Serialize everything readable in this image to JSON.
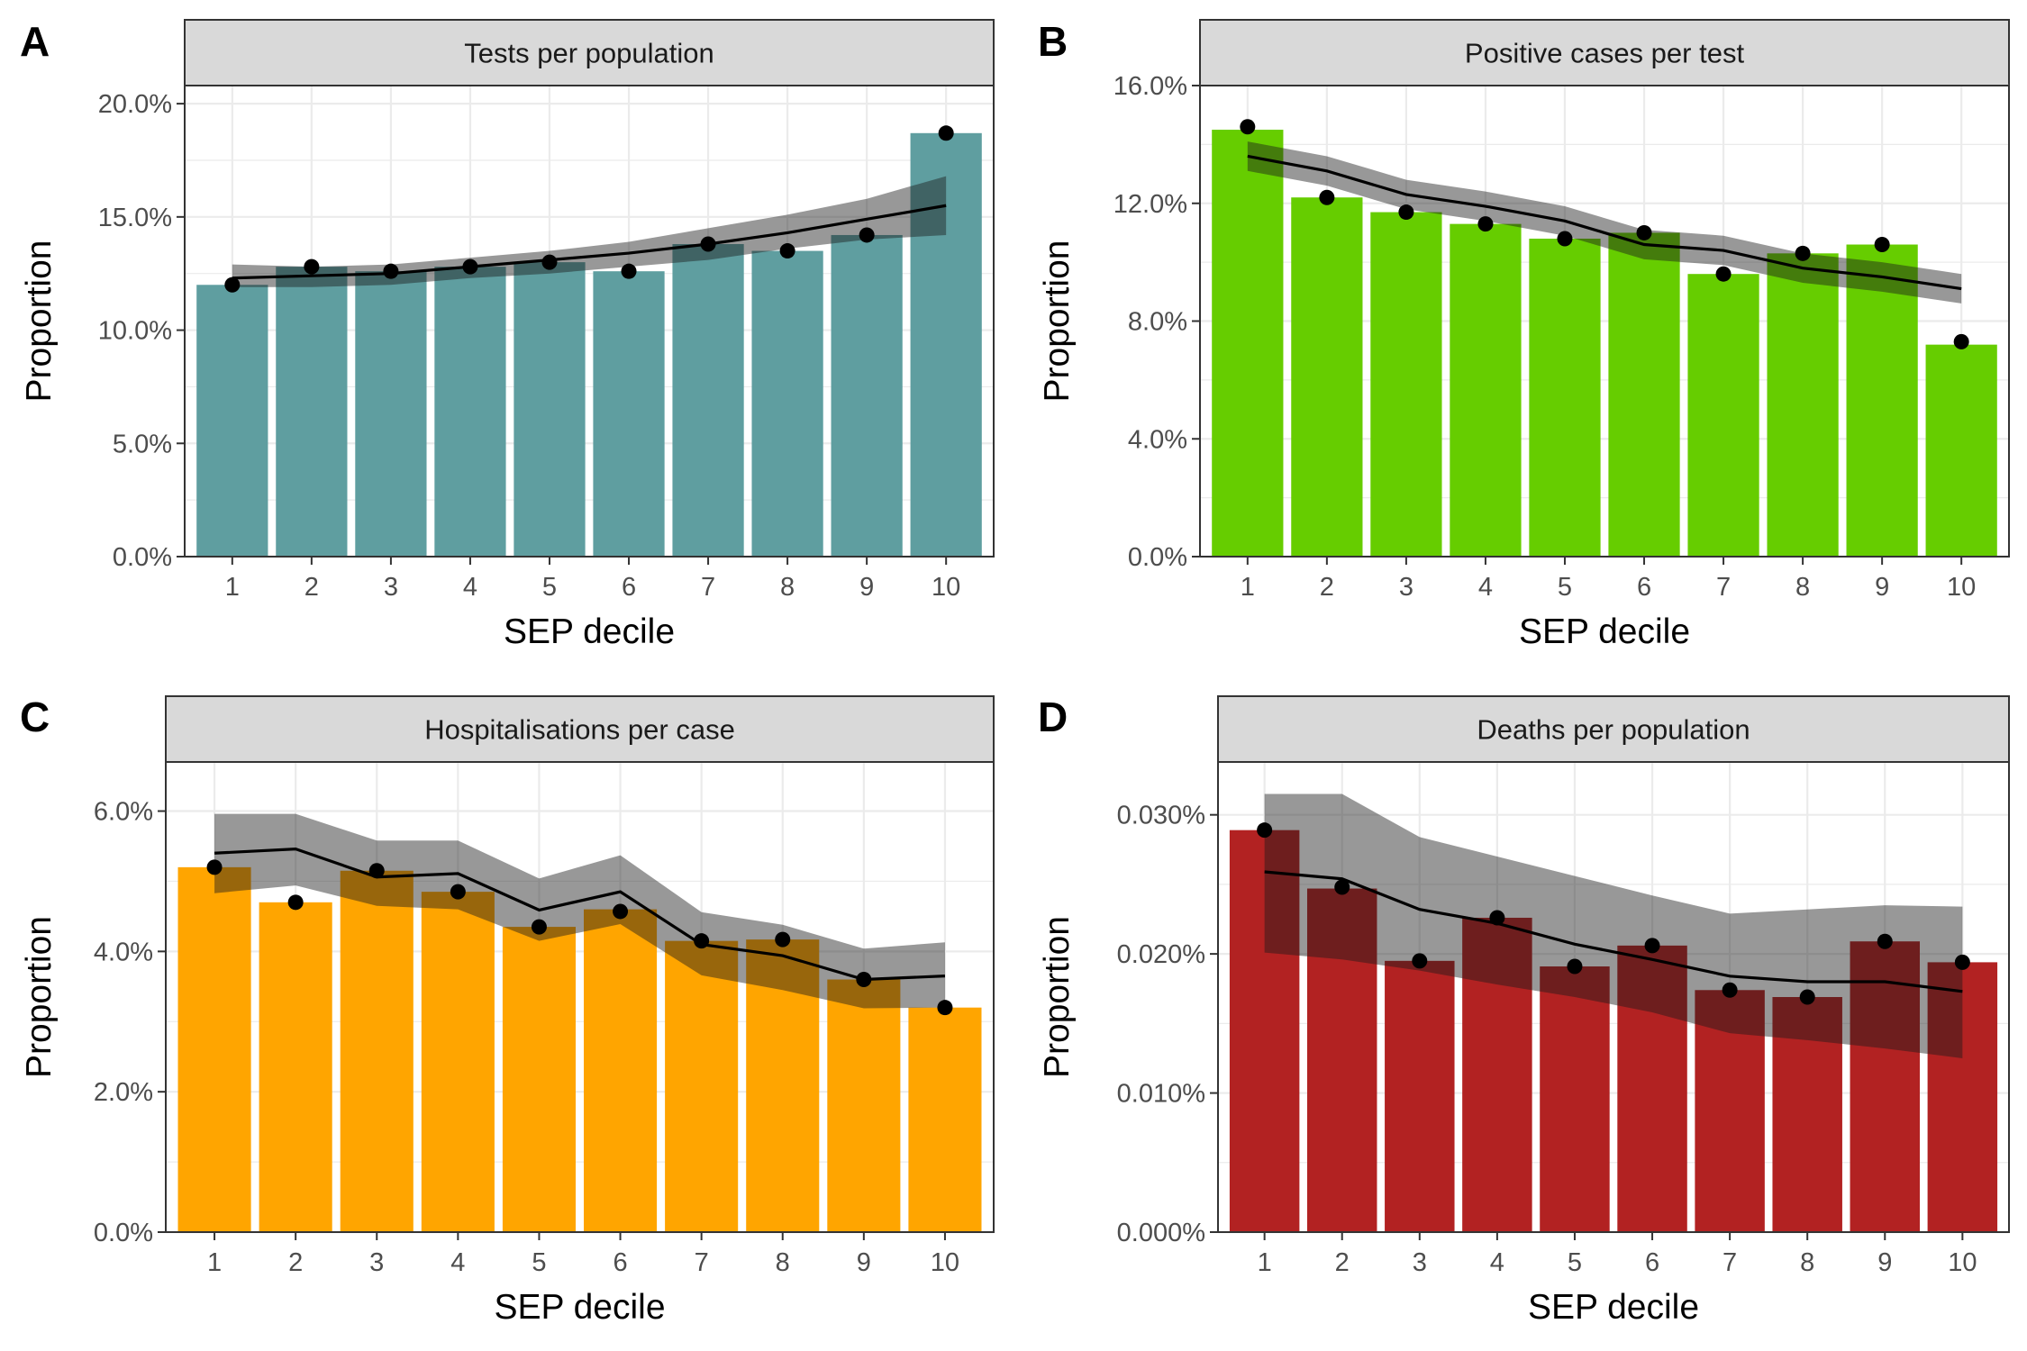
{
  "chart_data": [
    {
      "panel_label": "A",
      "type": "bar",
      "title": "Tests per population",
      "xlabel": "SEP decile",
      "ylabel": "Proportion",
      "categories": [
        "1",
        "2",
        "3",
        "4",
        "5",
        "6",
        "7",
        "8",
        "9",
        "10"
      ],
      "values": [
        12.0,
        12.8,
        12.6,
        12.8,
        13.0,
        12.6,
        13.8,
        13.5,
        14.2,
        18.7
      ],
      "points": [
        12.0,
        12.8,
        12.6,
        12.8,
        13.0,
        12.6,
        13.8,
        13.5,
        14.2,
        18.7
      ],
      "fit": [
        12.3,
        12.4,
        12.5,
        12.8,
        13.1,
        13.4,
        13.8,
        14.3,
        14.9,
        15.5
      ],
      "fit_lower": [
        11.9,
        11.9,
        12.0,
        12.3,
        12.5,
        12.8,
        13.1,
        13.6,
        14.0,
        14.2
      ],
      "fit_upper": [
        12.9,
        12.8,
        12.9,
        13.2,
        13.5,
        13.9,
        14.5,
        15.1,
        15.8,
        16.8
      ],
      "yticks": [
        0,
        5,
        10,
        15,
        20
      ],
      "ytick_labels": [
        "0.0%",
        "5.0%",
        "10.0%",
        "15.0%",
        "20.0%"
      ],
      "ylim": [
        0,
        20.8
      ],
      "bar_color": "#5f9ea0",
      "grid": true
    },
    {
      "panel_label": "B",
      "type": "bar",
      "title": "Positive cases per test",
      "xlabel": "SEP decile",
      "ylabel": "Proportion",
      "categories": [
        "1",
        "2",
        "3",
        "4",
        "5",
        "6",
        "7",
        "8",
        "9",
        "10"
      ],
      "values": [
        14.5,
        12.2,
        11.7,
        11.3,
        10.8,
        11.0,
        9.6,
        10.3,
        10.6,
        7.2
      ],
      "points": [
        14.6,
        12.2,
        11.7,
        11.3,
        10.8,
        11.0,
        9.6,
        10.3,
        10.6,
        7.3
      ],
      "fit": [
        13.6,
        13.1,
        12.3,
        11.9,
        11.4,
        10.6,
        10.4,
        9.8,
        9.5,
        9.1
      ],
      "fit_lower": [
        13.1,
        12.6,
        11.8,
        11.4,
        10.9,
        10.1,
        9.9,
        9.3,
        9.0,
        8.6
      ],
      "fit_upper": [
        14.1,
        13.6,
        12.8,
        12.4,
        11.9,
        11.1,
        10.9,
        10.3,
        10.0,
        9.6
      ],
      "yticks": [
        0,
        4,
        8,
        12,
        16
      ],
      "ytick_labels": [
        "0.0%",
        "4.0%",
        "8.0%",
        "12.0%",
        "16.0%"
      ],
      "ylim": [
        0,
        16
      ],
      "bar_color": "#66cd00",
      "grid": true
    },
    {
      "panel_label": "C",
      "type": "bar",
      "title": "Hospitalisations per case",
      "xlabel": "SEP decile",
      "ylabel": "Proportion",
      "categories": [
        "1",
        "2",
        "3",
        "4",
        "5",
        "6",
        "7",
        "8",
        "9",
        "10"
      ],
      "values": [
        5.2,
        4.7,
        5.15,
        4.85,
        4.35,
        4.6,
        4.15,
        4.17,
        3.6,
        3.2
      ],
      "points": [
        5.2,
        4.7,
        5.15,
        4.85,
        4.35,
        4.57,
        4.15,
        4.17,
        3.6,
        3.2
      ],
      "fit": [
        5.4,
        5.46,
        5.06,
        5.11,
        4.59,
        4.85,
        4.1,
        3.94,
        3.6,
        3.65
      ],
      "fit_lower": [
        4.83,
        4.94,
        4.65,
        4.6,
        4.15,
        4.39,
        3.66,
        3.45,
        3.19,
        3.2
      ],
      "fit_upper": [
        5.96,
        5.96,
        5.58,
        5.58,
        5.04,
        5.37,
        4.56,
        4.38,
        4.04,
        4.13
      ],
      "yticks": [
        0,
        2,
        4,
        6
      ],
      "ytick_labels": [
        "0.0%",
        "2.0%",
        "4.0%",
        "6.0%"
      ],
      "ylim": [
        0,
        6.7
      ],
      "bar_color": "#ffa500",
      "grid": true
    },
    {
      "panel_label": "D",
      "type": "bar",
      "title": "Deaths per population",
      "xlabel": "SEP decile",
      "ylabel": "Proportion",
      "categories": [
        "1",
        "2",
        "3",
        "4",
        "5",
        "6",
        "7",
        "8",
        "9",
        "10"
      ],
      "values": [
        0.0289,
        0.0247,
        0.0195,
        0.0226,
        0.0191,
        0.0206,
        0.0174,
        0.0169,
        0.0209,
        0.0194
      ],
      "points": [
        0.0289,
        0.0248,
        0.0195,
        0.0226,
        0.0191,
        0.0206,
        0.0174,
        0.0169,
        0.0209,
        0.0194
      ],
      "fit": [
        0.0259,
        0.0254,
        0.0232,
        0.0222,
        0.0207,
        0.0196,
        0.0184,
        0.018,
        0.018,
        0.0173
      ],
      "fit_lower": [
        0.0201,
        0.0196,
        0.0188,
        0.0178,
        0.0169,
        0.0158,
        0.0143,
        0.0138,
        0.0132,
        0.0125
      ],
      "fit_upper": [
        0.0315,
        0.0315,
        0.0284,
        0.027,
        0.0256,
        0.0242,
        0.0229,
        0.0232,
        0.0235,
        0.0234
      ],
      "yticks": [
        0,
        0.01,
        0.02,
        0.03
      ],
      "ytick_labels": [
        "0.000%",
        "0.010%",
        "0.020%",
        "0.030%"
      ],
      "ylim": [
        0,
        0.0338
      ],
      "bar_color": "#b22222",
      "grid": true
    }
  ],
  "colors": {
    "ribbon": "#1a1a1a",
    "fit_line": "#000000",
    "points": "#000000",
    "strip_fill": "#d9d9d9",
    "grid": "#ebebeb"
  }
}
